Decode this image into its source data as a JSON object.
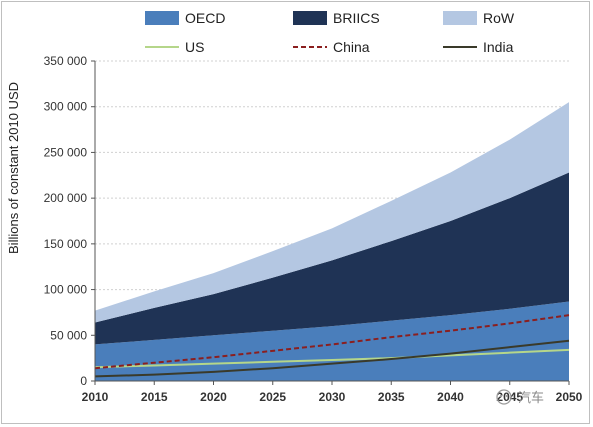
{
  "chart_data": {
    "type": "area",
    "ylabel": "Billions of constant 2010 USD",
    "xlabel": "",
    "x": [
      2010,
      2015,
      2020,
      2025,
      2030,
      2035,
      2040,
      2045,
      2050
    ],
    "x_ticks": [
      "2010",
      "2015",
      "2020",
      "2025",
      "2030",
      "2035",
      "2040",
      "2045",
      "2050"
    ],
    "ylim": [
      0,
      350000
    ],
    "y_ticks": [
      "0",
      "50 000",
      "100 000",
      "150 000",
      "200 000",
      "250 000",
      "300 000",
      "350 000"
    ],
    "y_tick_values": [
      0,
      50000,
      100000,
      150000,
      200000,
      250000,
      300000,
      350000
    ],
    "grid": true,
    "legend_position": "top",
    "stacked_series": [
      {
        "name": "OECD",
        "color": "#4a7ebb",
        "values": [
          40000,
          45000,
          50000,
          55000,
          60000,
          66000,
          72000,
          79000,
          87000
        ]
      },
      {
        "name": "BRIICS",
        "color": "#1f3355",
        "values": [
          24000,
          35000,
          45000,
          58000,
          72000,
          87000,
          103000,
          121000,
          141000
        ]
      },
      {
        "name": "RoW",
        "color": "#b4c7e2",
        "values": [
          13000,
          18000,
          23000,
          29000,
          35000,
          44000,
          53000,
          64000,
          77000
        ]
      }
    ],
    "line_series": [
      {
        "name": "US",
        "color": "#b5d68a",
        "style": "solid",
        "values": [
          15000,
          17000,
          19000,
          21000,
          23000,
          25000,
          28000,
          31000,
          34000
        ]
      },
      {
        "name": "China",
        "color": "#8b1f1f",
        "style": "dashed",
        "values": [
          14000,
          20000,
          26000,
          33000,
          40000,
          48000,
          55000,
          63000,
          72000
        ]
      },
      {
        "name": "India",
        "color": "#3a3a2a",
        "style": "solid",
        "values": [
          5000,
          7000,
          10000,
          14000,
          19000,
          24000,
          30000,
          37000,
          44000
        ]
      }
    ]
  },
  "watermark": "汽车"
}
